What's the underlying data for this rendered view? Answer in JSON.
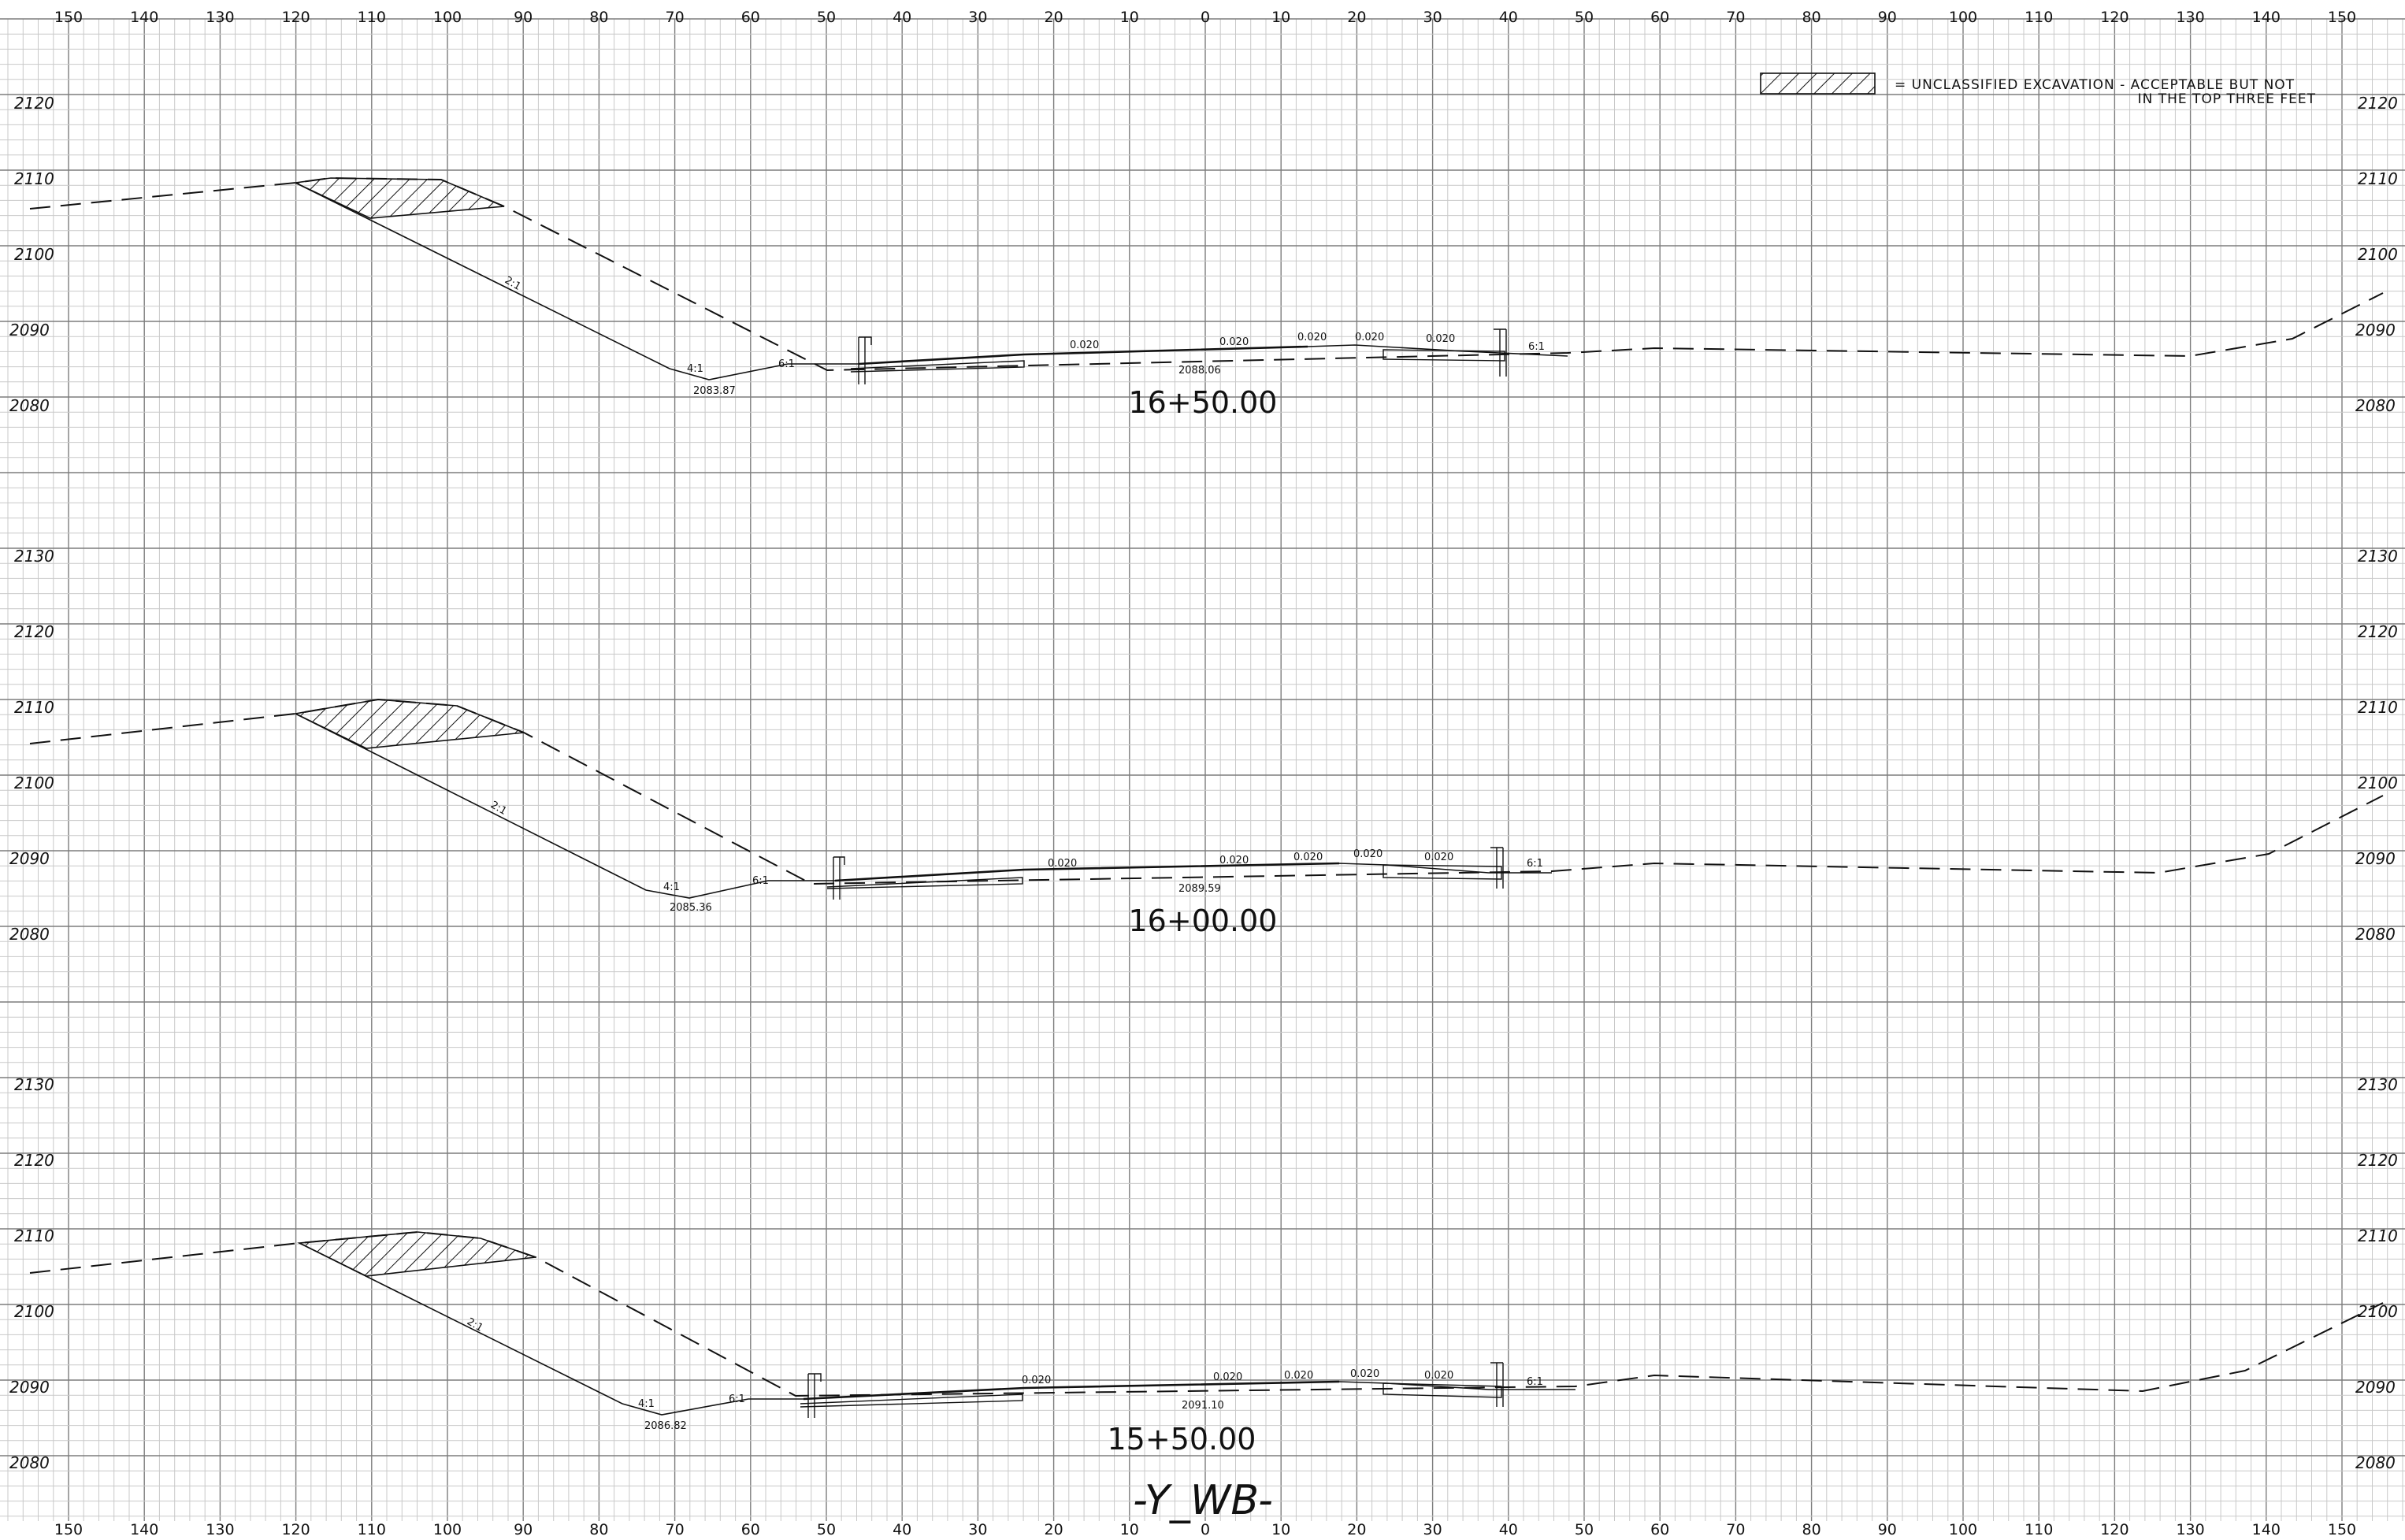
{
  "legend": {
    "line1": "=   UNCLASSIFIED  EXCAVATION  - ACCEPTABLE  BUT  NOT",
    "line2": "IN  THE  TOP  THREE  FEET"
  },
  "sheet_title": "-Y_WB-",
  "offset_ticks": [
    "150",
    "140",
    "130",
    "120",
    "110",
    "100",
    "90",
    "80",
    "70",
    "60",
    "50",
    "40",
    "30",
    "20",
    "10",
    "0",
    "10",
    "20",
    "30",
    "40",
    "50",
    "60",
    "70",
    "80",
    "90",
    "100",
    "110",
    "120",
    "130",
    "140",
    "150"
  ],
  "sections": [
    {
      "station": "16+50.00",
      "elevation_labels": [
        "2120",
        "2110",
        "2100",
        "2090",
        "2080"
      ],
      "grade_elevation": "2088.06",
      "ditch_elevation": "2083.87",
      "slopes": {
        "cut": "2:1",
        "ditch": "4:1",
        "foreslope": "6:1",
        "right": "6:1"
      },
      "cross_slopes": [
        "0.020",
        "0.020",
        "0.020",
        "0.020",
        "0.020"
      ]
    },
    {
      "station": "16+00.00",
      "elevation_labels": [
        "2130",
        "2120",
        "2110",
        "2100",
        "2090",
        "2080"
      ],
      "grade_elevation": "2089.59",
      "ditch_elevation": "2085.36",
      "slopes": {
        "cut": "2:1",
        "ditch": "4:1",
        "foreslope": "6:1",
        "right": "6:1"
      },
      "cross_slopes": [
        "0.020",
        "0.020",
        "0.020",
        "0.020",
        "0.020"
      ]
    },
    {
      "station": "15+50.00",
      "elevation_labels": [
        "2130",
        "2120",
        "2110",
        "2100",
        "2090",
        "2080"
      ],
      "grade_elevation": "2091.10",
      "ditch_elevation": "2086.82",
      "slopes": {
        "cut": "2:1",
        "ditch": "4:1",
        "foreslope": "6:1",
        "right": "6:1"
      },
      "cross_slopes": [
        "0.020",
        "0.020",
        "0.020",
        "0.020",
        "0.020"
      ]
    }
  ],
  "colors": {
    "ink": "#111111",
    "grid_minor": "#c9c9c9",
    "grid_major": "#7d7d7d",
    "paper": "#ffffff"
  }
}
